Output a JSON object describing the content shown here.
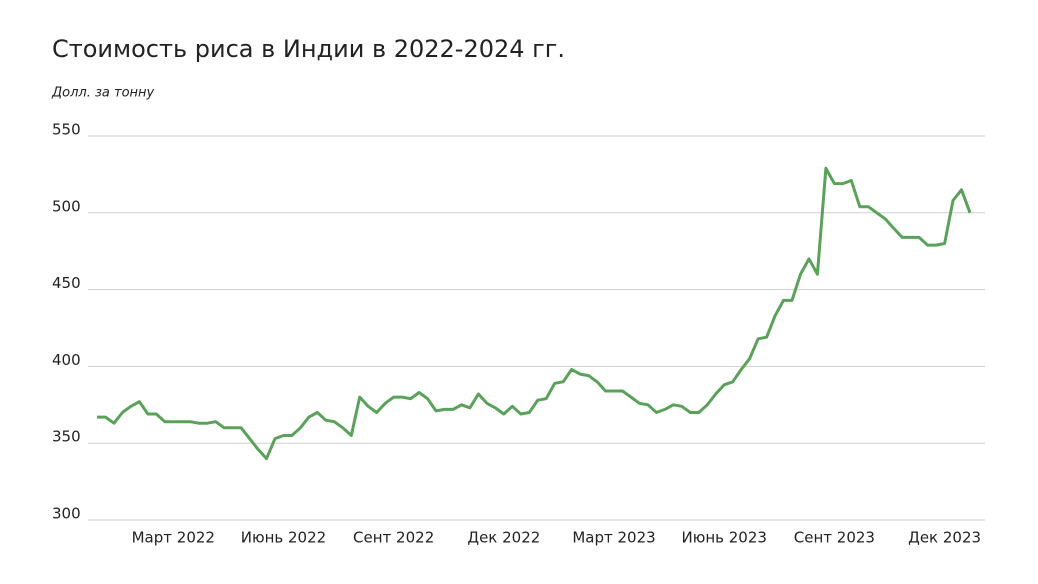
{
  "chart_data": {
    "type": "line",
    "title": "Стоимость риса в Индии в 2022-2024 гг.",
    "y_label": "Долл. за тонну",
    "categories": [
      null,
      null,
      null,
      null,
      null,
      null,
      null,
      null,
      null,
      "Март 2022",
      null,
      null,
      null,
      null,
      null,
      null,
      null,
      null,
      null,
      null,
      null,
      null,
      "Июнь 2022",
      null,
      null,
      null,
      null,
      null,
      null,
      null,
      null,
      null,
      null,
      null,
      null,
      "Сент 2022",
      null,
      null,
      null,
      null,
      null,
      null,
      null,
      null,
      null,
      null,
      null,
      null,
      "Дек 2022",
      null,
      null,
      null,
      null,
      null,
      null,
      null,
      null,
      null,
      null,
      null,
      null,
      "Март 2023",
      null,
      null,
      null,
      null,
      null,
      null,
      null,
      null,
      null,
      null,
      null,
      null,
      "Июнь 2023",
      null,
      null,
      null,
      null,
      null,
      null,
      null,
      null,
      null,
      null,
      null,
      null,
      "Сент 2023",
      null,
      null,
      null,
      null,
      null,
      null,
      null,
      null,
      null,
      null,
      null,
      null,
      "Дек 2023",
      null,
      null,
      null
    ],
    "values": [
      367,
      367,
      363,
      370,
      374,
      377,
      369,
      369,
      364,
      364,
      364,
      364,
      363,
      363,
      364,
      360,
      360,
      360,
      353,
      346,
      340,
      353,
      355,
      355,
      360,
      367,
      370,
      365,
      364,
      360,
      355,
      380,
      374,
      370,
      376,
      380,
      380,
      379,
      383,
      379,
      371,
      372,
      372,
      375,
      373,
      382,
      376,
      373,
      369,
      374,
      369,
      370,
      378,
      379,
      389,
      390,
      398,
      395,
      394,
      390,
      384,
      384,
      384,
      380,
      376,
      375,
      370,
      372,
      375,
      374,
      370,
      370,
      375,
      382,
      388,
      390,
      398,
      405,
      418,
      419,
      433,
      443,
      443,
      460,
      470,
      460,
      529,
      519,
      519,
      521,
      504,
      504,
      500,
      496,
      490,
      484,
      484,
      484,
      479,
      479,
      480,
      508,
      515,
      500
    ],
    "color": "#5aa15a",
    "ylim": [
      300,
      550
    ],
    "yticks": [
      300,
      350,
      400,
      450,
      500,
      550
    ],
    "grid": true
  }
}
